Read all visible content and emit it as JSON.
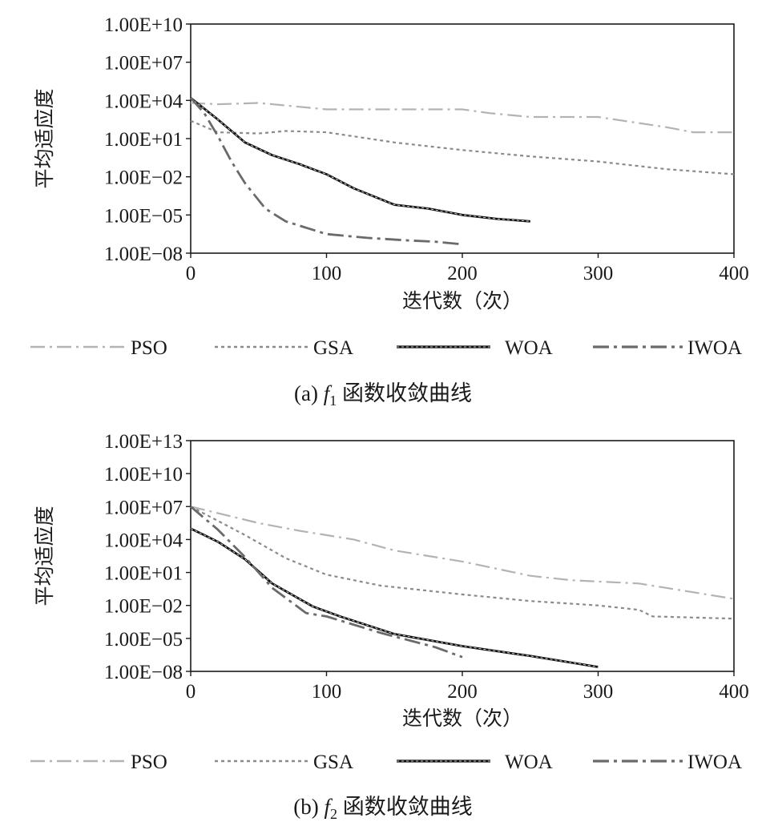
{
  "chart_data": [
    {
      "type": "line",
      "caption_prefix": "(a)",
      "caption_func": "f",
      "caption_sub": "1",
      "caption_text": "函数收敛曲线",
      "xlabel": "迭代数（次）",
      "ylabel": "平均适应度",
      "xlim": [
        0,
        400
      ],
      "ylim_log10": [
        -8,
        10
      ],
      "y_scale": "log",
      "x_ticks": [
        "0",
        "100",
        "200",
        "300",
        "400"
      ],
      "y_ticks": [
        "1.00E−08",
        "1.00E−05",
        "1.00E−02",
        "1.00E+01",
        "1.00E+04",
        "1.00E+07",
        "1.00E+10"
      ],
      "legend": {
        "placement": "below-plot",
        "items": [
          "PSO",
          "GSA",
          "WOA",
          "IWOA"
        ]
      },
      "series": [
        {
          "name": "PSO",
          "x": [
            0,
            20,
            50,
            100,
            150,
            200,
            220,
            250,
            300,
            350,
            370,
            400
          ],
          "log10_y": [
            3.8,
            3.7,
            3.8,
            3.3,
            3.3,
            3.3,
            3.0,
            2.7,
            2.7,
            1.9,
            1.5,
            1.5
          ]
        },
        {
          "name": "GSA",
          "x": [
            0,
            20,
            50,
            70,
            100,
            150,
            200,
            250,
            300,
            350,
            400
          ],
          "log10_y": [
            2.4,
            1.5,
            1.4,
            1.6,
            1.5,
            0.7,
            0.1,
            -0.4,
            -0.8,
            -1.4,
            -1.8
          ]
        },
        {
          "name": "WOA",
          "x": [
            0,
            20,
            40,
            60,
            80,
            100,
            120,
            150,
            175,
            200,
            225,
            250
          ],
          "log10_y": [
            4.2,
            2.5,
            0.7,
            -0.3,
            -1.0,
            -1.8,
            -2.9,
            -4.2,
            -4.5,
            -5.0,
            -5.3,
            -5.5
          ]
        },
        {
          "name": "IWOA",
          "x": [
            0,
            10,
            20,
            30,
            40,
            55,
            70,
            100,
            130,
            160,
            180,
            200
          ],
          "log10_y": [
            4.2,
            3.0,
            1.2,
            -0.8,
            -2.5,
            -4.5,
            -5.5,
            -6.5,
            -6.8,
            -7.0,
            -7.1,
            -7.3
          ]
        }
      ]
    },
    {
      "type": "line",
      "caption_prefix": "(b)",
      "caption_func": "f",
      "caption_sub": "2",
      "caption_text": "函数收敛曲线",
      "xlabel": "迭代数（次）",
      "ylabel": "平均适应度",
      "xlim": [
        0,
        400
      ],
      "ylim_log10": [
        -8,
        13
      ],
      "y_scale": "log",
      "x_ticks": [
        "0",
        "100",
        "200",
        "300",
        "400"
      ],
      "y_ticks": [
        "1.00E−08",
        "1.00E−05",
        "1.00E−02",
        "1.00E+01",
        "1.00E+04",
        "1.00E+07",
        "1.00E+10",
        "1.00E+13"
      ],
      "legend": {
        "placement": "below-plot",
        "items": [
          "PSO",
          "GSA",
          "WOA",
          "IWOA"
        ]
      },
      "series": [
        {
          "name": "PSO",
          "x": [
            0,
            50,
            80,
            120,
            150,
            200,
            250,
            280,
            330,
            380,
            400
          ],
          "log10_y": [
            7.0,
            5.5,
            4.8,
            4.0,
            3.0,
            2.0,
            0.7,
            0.3,
            0.0,
            -1.0,
            -1.4
          ]
        },
        {
          "name": "GSA",
          "x": [
            0,
            40,
            70,
            100,
            140,
            200,
            250,
            300,
            330,
            340,
            400
          ],
          "log10_y": [
            7.0,
            4.4,
            2.3,
            0.8,
            -0.2,
            -1.0,
            -1.6,
            -2.0,
            -2.4,
            -3.0,
            -3.2
          ]
        },
        {
          "name": "WOA",
          "x": [
            0,
            20,
            40,
            60,
            90,
            110,
            150,
            200,
            250,
            300
          ],
          "log10_y": [
            5.0,
            3.8,
            2.2,
            0.0,
            -2.1,
            -3.0,
            -4.6,
            -5.7,
            -6.6,
            -7.6
          ]
        },
        {
          "name": "IWOA",
          "x": [
            0,
            20,
            40,
            60,
            85,
            100,
            140,
            180,
            200
          ],
          "log10_y": [
            7.0,
            4.9,
            2.4,
            -0.4,
            -2.7,
            -3.0,
            -4.5,
            -5.8,
            -6.7
          ]
        }
      ]
    }
  ]
}
